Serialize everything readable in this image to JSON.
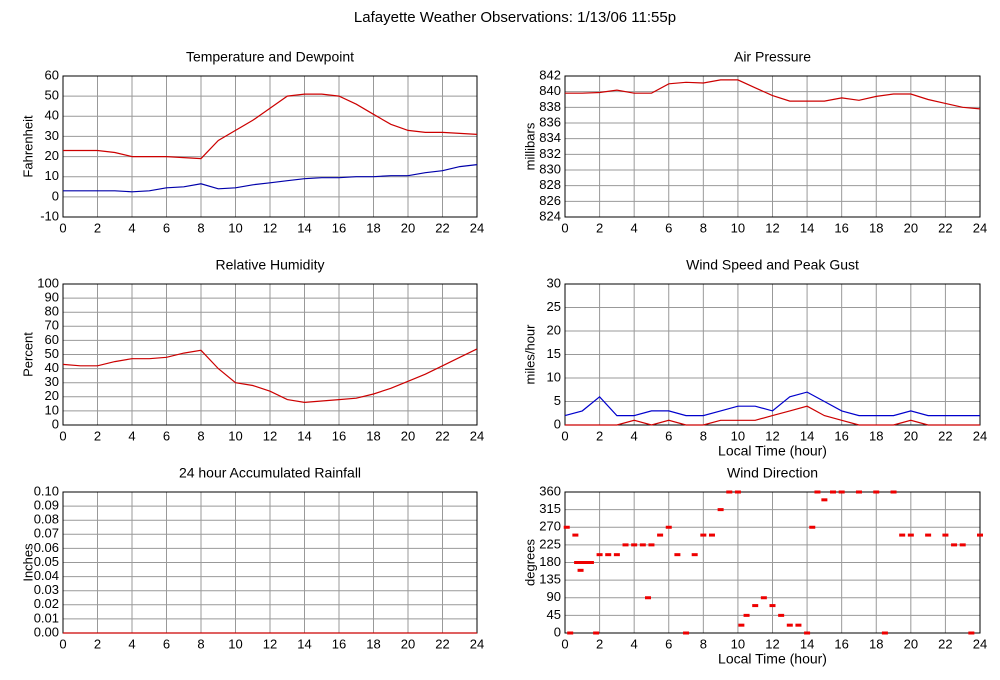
{
  "title": "Lafayette Weather Observations: 1/13/06 11:55p",
  "chart_data": [
    {
      "type": "line",
      "title": "Temperature and Dewpoint",
      "ylabel": "Fahrenheit",
      "x": [
        0,
        1,
        2,
        3,
        4,
        5,
        6,
        7,
        8,
        9,
        10,
        11,
        12,
        13,
        14,
        15,
        16,
        17,
        18,
        19,
        20,
        21,
        22,
        23,
        24
      ],
      "series": [
        {
          "name": "Temperature",
          "color": "#cc0000",
          "values": [
            23,
            23,
            23,
            22,
            20,
            20,
            20,
            19.5,
            19,
            28,
            33,
            38,
            44,
            50,
            51,
            51,
            50,
            46,
            41,
            36,
            33,
            32,
            32,
            31.5,
            31
          ]
        },
        {
          "name": "Dewpoint",
          "color": "#0000aa",
          "values": [
            3,
            3,
            3,
            3,
            2.5,
            3,
            4.5,
            5,
            6.5,
            4,
            4.5,
            6,
            7,
            8,
            9,
            9.5,
            9.5,
            10,
            10,
            10.5,
            10.5,
            12,
            13,
            15,
            16
          ]
        }
      ],
      "xlim": [
        0,
        24
      ],
      "xticks": [
        0,
        2,
        4,
        6,
        8,
        10,
        12,
        14,
        16,
        18,
        20,
        22,
        24
      ],
      "ylim": [
        -10,
        60
      ],
      "yticks": [
        -10,
        0,
        10,
        20,
        30,
        40,
        50,
        60
      ],
      "grid": true
    },
    {
      "type": "line",
      "title": "Air Pressure",
      "ylabel": "millibars",
      "x": [
        0,
        1,
        2,
        3,
        4,
        5,
        6,
        7,
        8,
        9,
        10,
        11,
        12,
        13,
        14,
        15,
        16,
        17,
        18,
        19,
        20,
        21,
        22,
        23,
        24
      ],
      "series": [
        {
          "name": "Pressure",
          "color": "#cc0000",
          "values": [
            839.8,
            839.8,
            839.9,
            840.2,
            839.8,
            839.8,
            841.0,
            841.2,
            841.1,
            841.5,
            841.5,
            840.5,
            839.5,
            838.8,
            838.8,
            838.8,
            839.2,
            838.9,
            839.4,
            839.7,
            839.7,
            839.0,
            838.5,
            838.0,
            837.8
          ]
        }
      ],
      "xlim": [
        0,
        24
      ],
      "xticks": [
        0,
        2,
        4,
        6,
        8,
        10,
        12,
        14,
        16,
        18,
        20,
        22,
        24
      ],
      "ylim": [
        824,
        842
      ],
      "yticks": [
        824,
        826,
        828,
        830,
        832,
        834,
        836,
        838,
        840,
        842
      ],
      "grid": true
    },
    {
      "type": "line",
      "title": "Relative Humidity",
      "ylabel": "Percent",
      "x": [
        0,
        1,
        2,
        3,
        4,
        5,
        6,
        7,
        8,
        9,
        10,
        11,
        12,
        13,
        14,
        15,
        16,
        17,
        18,
        19,
        20,
        21,
        22,
        23,
        24
      ],
      "series": [
        {
          "name": "Humidity",
          "color": "#cc0000",
          "values": [
            43,
            42,
            42,
            45,
            47,
            47,
            48,
            51,
            53,
            40,
            30,
            28,
            24,
            18,
            16,
            17,
            18,
            19,
            22,
            26,
            31,
            36,
            42,
            48,
            54
          ]
        }
      ],
      "xlim": [
        0,
        24
      ],
      "xticks": [
        0,
        2,
        4,
        6,
        8,
        10,
        12,
        14,
        16,
        18,
        20,
        22,
        24
      ],
      "ylim": [
        0,
        100
      ],
      "yticks": [
        0,
        10,
        20,
        30,
        40,
        50,
        60,
        70,
        80,
        90,
        100
      ],
      "grid": true
    },
    {
      "type": "line",
      "title": "Wind Speed and Peak Gust",
      "ylabel": "miles/hour",
      "xlabel": "Local Time (hour)",
      "x": [
        0,
        1,
        2,
        3,
        4,
        5,
        6,
        7,
        8,
        9,
        10,
        11,
        12,
        13,
        14,
        15,
        16,
        17,
        18,
        19,
        20,
        21,
        22,
        23,
        24
      ],
      "series": [
        {
          "name": "Peak Gust",
          "color": "#0000cc",
          "values": [
            2,
            3,
            6,
            2,
            2,
            3,
            3,
            2,
            2,
            3,
            4,
            4,
            3,
            6,
            7,
            5,
            3,
            2,
            2,
            2,
            3,
            2,
            2,
            2,
            2
          ]
        },
        {
          "name": "Wind Speed",
          "color": "#cc0000",
          "values": [
            0,
            0,
            0,
            0,
            1,
            0,
            1,
            0,
            0,
            1,
            1,
            1,
            2,
            3,
            4,
            2,
            1,
            0,
            0,
            0,
            1,
            0,
            0,
            0,
            0
          ]
        }
      ],
      "xlim": [
        0,
        24
      ],
      "xticks": [
        0,
        2,
        4,
        6,
        8,
        10,
        12,
        14,
        16,
        18,
        20,
        22,
        24
      ],
      "ylim": [
        0,
        30
      ],
      "yticks": [
        0,
        5,
        10,
        15,
        20,
        25,
        30
      ],
      "grid": true
    },
    {
      "type": "line",
      "title": "24 hour Accumulated Rainfall",
      "ylabel": "Inches",
      "x": [
        0,
        24
      ],
      "series": [
        {
          "name": "Rainfall",
          "color": "#cc0000",
          "values": [
            0,
            0
          ]
        }
      ],
      "xlim": [
        0,
        24
      ],
      "xticks": [
        0,
        2,
        4,
        6,
        8,
        10,
        12,
        14,
        16,
        18,
        20,
        22,
        24
      ],
      "ylim": [
        0,
        0.1
      ],
      "yticks": [
        {
          "value": 0,
          "label": "0.00"
        },
        {
          "value": 0.01,
          "label": "0.01"
        },
        {
          "value": 0.02,
          "label": "0.02"
        },
        {
          "value": 0.03,
          "label": "0.03"
        },
        {
          "value": 0.04,
          "label": "0.04"
        },
        {
          "value": 0.05,
          "label": "0.05"
        },
        {
          "value": 0.06,
          "label": "0.06"
        },
        {
          "value": 0.07,
          "label": "0.07"
        },
        {
          "value": 0.08,
          "label": "0.08"
        },
        {
          "value": 0.09,
          "label": "0.09"
        },
        {
          "value": 0.1,
          "label": "0.10"
        }
      ],
      "grid": true
    },
    {
      "type": "scatter",
      "title": "Wind Direction",
      "ylabel": "degrees",
      "xlabel": "Local Time (hour)",
      "x": [
        0.1,
        0.3,
        0.6,
        0.7,
        0.9,
        1.0,
        1.2,
        1.5,
        1.8,
        2.0,
        2.5,
        3.0,
        3.5,
        4.0,
        4.5,
        4.8,
        5.0,
        5.5,
        6.0,
        6.5,
        7.0,
        7.5,
        8.0,
        8.5,
        9.0,
        9.5,
        10.0,
        10.2,
        10.5,
        11.0,
        11.5,
        12.0,
        12.5,
        13.0,
        13.5,
        14.0,
        14.3,
        14.6,
        15.0,
        15.5,
        16.0,
        17.0,
        18.0,
        18.5,
        19.0,
        19.5,
        20.0,
        21.0,
        22.0,
        22.5,
        23.0,
        23.5,
        24.0
      ],
      "series": [
        {
          "name": "Direction",
          "color": "#ee0000",
          "values": [
            270,
            0,
            250,
            180,
            160,
            180,
            180,
            180,
            0,
            200,
            200,
            200,
            225,
            225,
            225,
            90,
            225,
            250,
            270,
            200,
            0,
            200,
            250,
            250,
            315,
            360,
            360,
            20,
            45,
            70,
            90,
            70,
            45,
            20,
            20,
            0,
            270,
            360,
            340,
            360,
            360,
            360,
            360,
            0,
            360,
            250,
            250,
            250,
            250,
            225,
            225,
            0,
            250
          ]
        }
      ],
      "xlim": [
        0,
        24
      ],
      "xticks": [
        0,
        2,
        4,
        6,
        8,
        10,
        12,
        14,
        16,
        18,
        20,
        22,
        24
      ],
      "ylim": [
        0,
        360
      ],
      "yticks": [
        0,
        45,
        90,
        135,
        180,
        225,
        270,
        315,
        360
      ],
      "grid": true
    }
  ]
}
